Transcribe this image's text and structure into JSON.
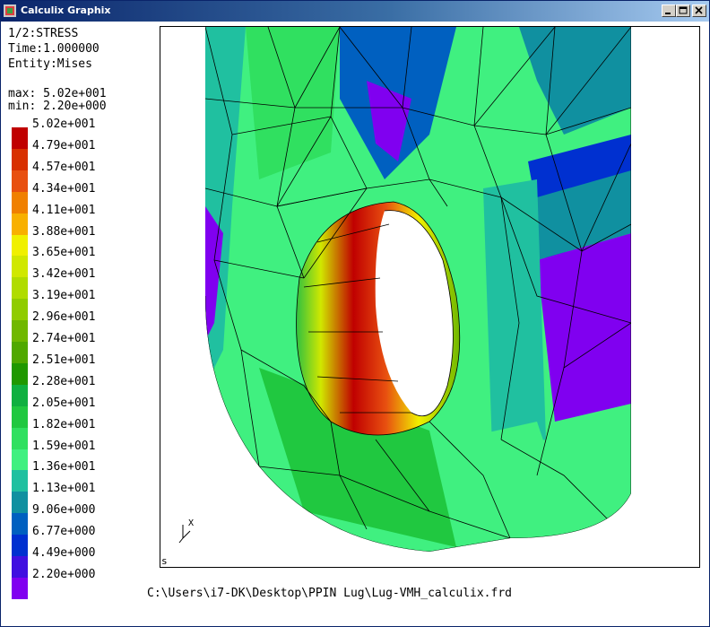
{
  "window": {
    "title": "Calculix Graphix"
  },
  "info": {
    "dataset": "1/2:STRESS",
    "time": "Time:1.000000",
    "entity": "Entity:Mises",
    "max": "max: 5.02e+001",
    "min": "min: 2.20e+000"
  },
  "legend": {
    "labels": [
      "5.02e+001",
      "4.79e+001",
      "4.57e+001",
      "4.34e+001",
      "4.11e+001",
      "3.88e+001",
      "3.65e+001",
      "3.42e+001",
      "3.19e+001",
      "2.96e+001",
      "2.74e+001",
      "2.51e+001",
      "2.28e+001",
      "2.05e+001",
      "1.82e+001",
      "1.59e+001",
      "1.36e+001",
      "1.13e+001",
      "9.06e+000",
      "6.77e+000",
      "4.49e+000",
      "2.20e+000"
    ],
    "colors": [
      "#c00000",
      "#d83000",
      "#e85010",
      "#f08000",
      "#f8b000",
      "#f0f000",
      "#d0e800",
      "#b0dc00",
      "#90cc00",
      "#70b800",
      "#50a800",
      "#209800",
      "#10b040",
      "#20c840",
      "#30e060",
      "#40f080",
      "#20c0a0",
      "#1090a0",
      "#0060c0",
      "#0030d0",
      "#4010e0",
      "#8000f0"
    ]
  },
  "viewport": {
    "corner_label": "s",
    "axis_label": "X"
  },
  "status": {
    "filepath": "C:\\Users\\i7-DK\\Desktop\\PPIN Lug\\Lug-VMH_calculix.frd"
  }
}
